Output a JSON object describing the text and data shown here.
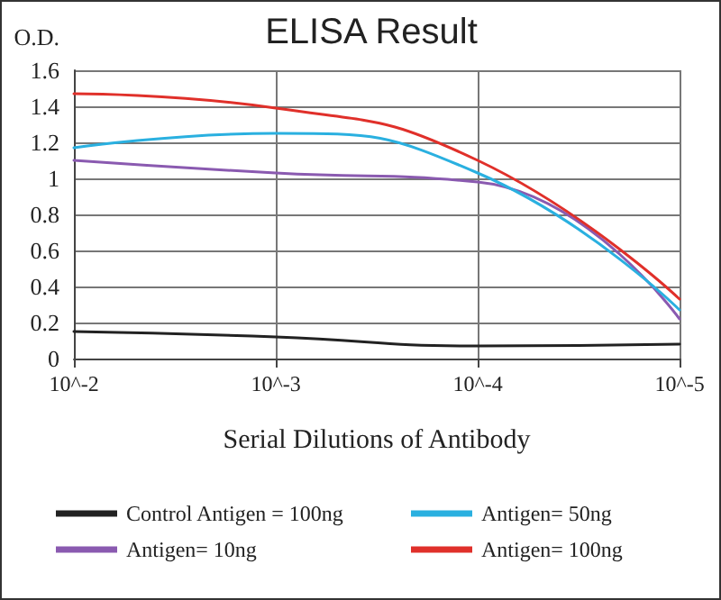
{
  "chart_data": {
    "type": "line",
    "title": "ELISA Result",
    "ylabel": "O.D.",
    "xlabel": "Serial Dilutions of Antibody",
    "categories": [
      "10^-2",
      "10^-3",
      "10^-4",
      "10^-5"
    ],
    "series": [
      {
        "name": "Control Antigen = 100ng",
        "color": "#222222",
        "values": [
          0.15,
          0.12,
          0.07,
          0.08
        ]
      },
      {
        "name": "Antigen= 10ng",
        "color": "#8a5ab0",
        "values": [
          1.1,
          1.03,
          0.98,
          0.22
        ]
      },
      {
        "name": "Antigen= 50ng",
        "color": "#2ab0e0",
        "values": [
          1.17,
          1.25,
          1.03,
          0.27
        ]
      },
      {
        "name": "Antigen= 100ng",
        "color": "#e0302a",
        "values": [
          1.47,
          1.39,
          1.1,
          0.33
        ]
      }
    ],
    "ylim": [
      0,
      1.6
    ],
    "yticks": [
      0,
      0.2,
      0.4,
      0.6,
      0.8,
      1,
      1.2,
      1.4,
      1.6
    ],
    "grid": true,
    "legend": "bottom",
    "marker": "none",
    "line_style": "solid"
  }
}
